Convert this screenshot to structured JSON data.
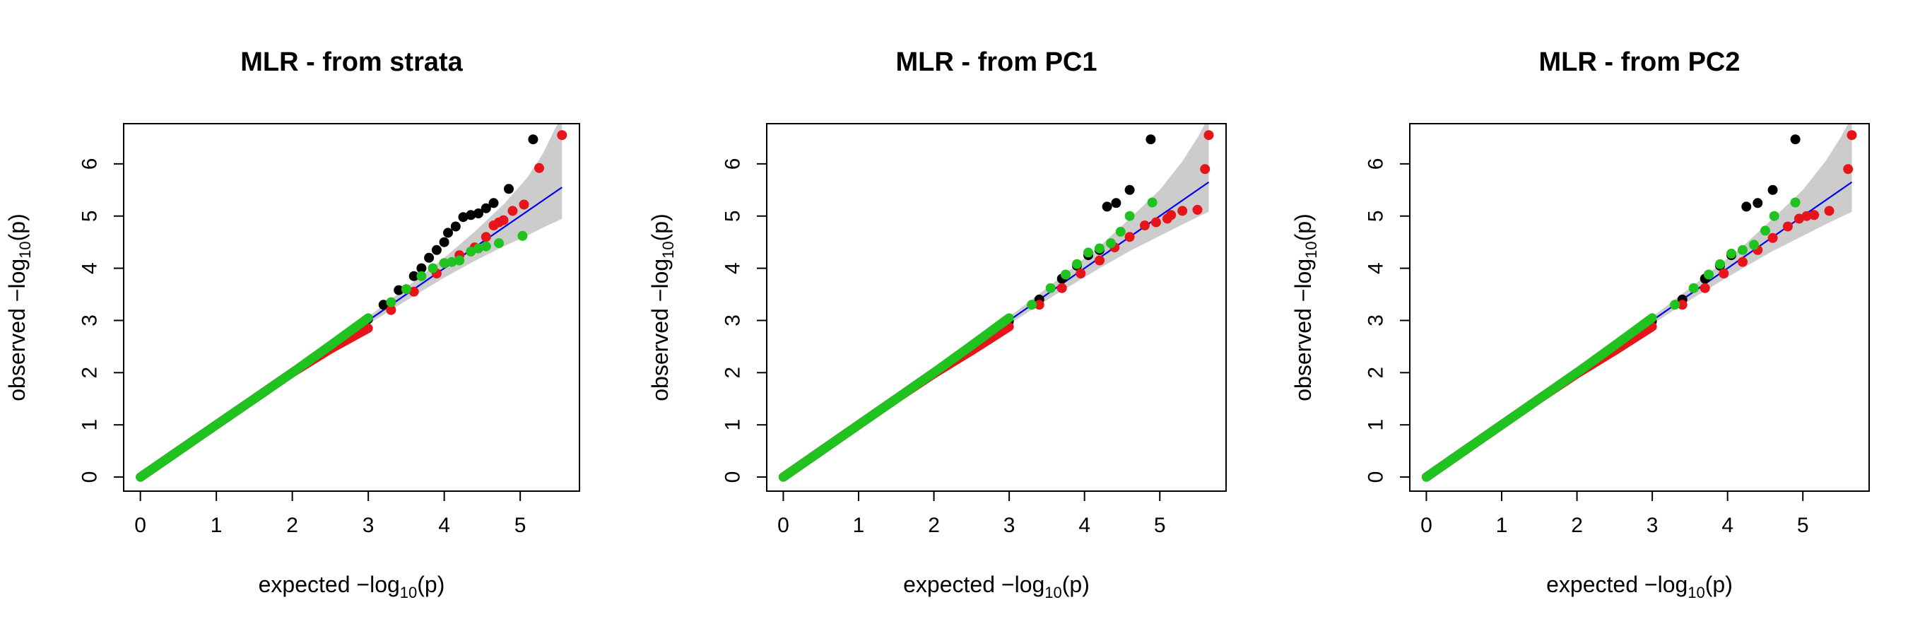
{
  "colors": {
    "series_1": "#000000",
    "series_2": "#e8141b",
    "series_3": "#1fc21f",
    "reference_line": "#0000ee",
    "confidence_band": "#cccccc"
  },
  "chart_data": [
    {
      "type": "scatter",
      "title": "MLR - from strata",
      "xlabel": {
        "prefix": "expected −log",
        "subscript": "10",
        "suffix": "(p)"
      },
      "ylabel": {
        "prefix": "observed −log",
        "subscript": "10",
        "suffix": "(p)"
      },
      "xlim": [
        -0.22,
        5.78
      ],
      "ylim": [
        -0.27,
        6.77
      ],
      "x_ticks": [
        0,
        1,
        2,
        3,
        4,
        5
      ],
      "y_ticks": [
        0,
        1,
        2,
        3,
        4,
        5,
        6
      ],
      "grid": false,
      "legend": "none",
      "reference_line": {
        "x": [
          0,
          5.55
        ],
        "y": [
          0,
          5.55
        ]
      },
      "confidence_band": {
        "x": [
          3.0,
          3.5,
          4.0,
          4.4,
          4.8,
          5.1,
          5.3,
          5.45,
          5.55
        ],
        "lower": [
          2.93,
          3.38,
          3.82,
          4.14,
          4.43,
          4.63,
          4.78,
          4.88,
          4.95
        ],
        "upper": [
          3.07,
          3.63,
          4.2,
          4.7,
          5.25,
          5.75,
          6.2,
          6.65,
          6.9
        ]
      },
      "series": [
        {
          "color_key": "series_1",
          "points": [
            [
              0,
              0
            ],
            [
              0.5,
              0.5
            ],
            [
              1,
              1
            ],
            [
              1.5,
              1.5
            ],
            [
              2,
              2
            ],
            [
              2.5,
              2.5
            ],
            [
              3,
              3.02
            ],
            [
              3.2,
              3.3
            ],
            [
              3.4,
              3.58
            ],
            [
              3.6,
              3.85
            ],
            [
              3.7,
              4.0
            ],
            [
              3.8,
              4.2
            ],
            [
              3.9,
              4.35
            ],
            [
              4.0,
              4.5
            ],
            [
              4.05,
              4.68
            ],
            [
              4.15,
              4.8
            ],
            [
              4.25,
              4.98
            ],
            [
              4.35,
              5.02
            ],
            [
              4.45,
              5.05
            ],
            [
              4.55,
              5.15
            ],
            [
              4.65,
              5.25
            ],
            [
              4.85,
              5.52
            ],
            [
              5.17,
              6.47
            ]
          ]
        },
        {
          "color_key": "series_2",
          "points": [
            [
              0,
              0
            ],
            [
              0.5,
              0.5
            ],
            [
              1,
              1
            ],
            [
              1.5,
              1.5
            ],
            [
              2,
              2
            ],
            [
              2.5,
              2.45
            ],
            [
              3,
              2.85
            ],
            [
              3.3,
              3.2
            ],
            [
              3.6,
              3.55
            ],
            [
              3.9,
              3.9
            ],
            [
              4.2,
              4.25
            ],
            [
              4.4,
              4.4
            ],
            [
              4.55,
              4.6
            ],
            [
              4.65,
              4.82
            ],
            [
              4.72,
              4.88
            ],
            [
              4.78,
              4.92
            ],
            [
              4.9,
              5.1
            ],
            [
              5.05,
              5.22
            ],
            [
              5.25,
              5.92
            ],
            [
              5.55,
              6.55
            ]
          ]
        },
        {
          "color_key": "series_3",
          "points": [
            [
              0,
              0
            ],
            [
              0.5,
              0.5
            ],
            [
              1,
              1
            ],
            [
              1.5,
              1.5
            ],
            [
              2,
              2
            ],
            [
              2.5,
              2.52
            ],
            [
              3,
              3.05
            ],
            [
              3.3,
              3.35
            ],
            [
              3.5,
              3.6
            ],
            [
              3.7,
              3.85
            ],
            [
              3.85,
              4.0
            ],
            [
              4.0,
              4.1
            ],
            [
              4.1,
              4.12
            ],
            [
              4.2,
              4.15
            ],
            [
              4.35,
              4.32
            ],
            [
              4.45,
              4.38
            ],
            [
              4.55,
              4.42
            ],
            [
              4.72,
              4.48
            ],
            [
              5.03,
              4.62
            ]
          ]
        }
      ]
    },
    {
      "type": "scatter",
      "title": "MLR - from PC1",
      "xlabel": {
        "prefix": "expected −log",
        "subscript": "10",
        "suffix": "(p)"
      },
      "ylabel": {
        "prefix": "observed −log",
        "subscript": "10",
        "suffix": "(p)"
      },
      "xlim": [
        -0.22,
        5.88
      ],
      "ylim": [
        -0.27,
        6.77
      ],
      "x_ticks": [
        0,
        1,
        2,
        3,
        4,
        5
      ],
      "y_ticks": [
        0,
        1,
        2,
        3,
        4,
        5,
        6
      ],
      "grid": false,
      "legend": "none",
      "reference_line": {
        "x": [
          0,
          5.65
        ],
        "y": [
          0,
          5.65
        ]
      },
      "confidence_band": {
        "x": [
          3.0,
          3.6,
          4.2,
          4.6,
          5.0,
          5.3,
          5.5,
          5.65
        ],
        "lower": [
          2.93,
          3.48,
          4.0,
          4.33,
          4.62,
          4.84,
          4.98,
          5.08
        ],
        "upper": [
          3.07,
          3.73,
          4.42,
          4.95,
          5.5,
          6.05,
          6.5,
          6.9
        ]
      },
      "series": [
        {
          "color_key": "series_1",
          "points": [
            [
              0,
              0
            ],
            [
              0.5,
              0.5
            ],
            [
              1,
              1
            ],
            [
              1.5,
              1.5
            ],
            [
              2,
              2
            ],
            [
              2.5,
              2.48
            ],
            [
              3,
              2.98
            ],
            [
              3.4,
              3.4
            ],
            [
              3.7,
              3.8
            ],
            [
              3.9,
              4.05
            ],
            [
              4.05,
              4.25
            ],
            [
              4.2,
              4.35
            ],
            [
              4.3,
              5.18
            ],
            [
              4.42,
              5.25
            ],
            [
              4.6,
              5.5
            ],
            [
              4.88,
              6.47
            ]
          ]
        },
        {
          "color_key": "series_2",
          "points": [
            [
              0,
              0
            ],
            [
              0.5,
              0.5
            ],
            [
              1,
              1
            ],
            [
              1.5,
              1.5
            ],
            [
              2,
              1.98
            ],
            [
              2.5,
              2.42
            ],
            [
              3,
              2.88
            ],
            [
              3.4,
              3.3
            ],
            [
              3.7,
              3.62
            ],
            [
              3.95,
              3.9
            ],
            [
              4.2,
              4.15
            ],
            [
              4.4,
              4.4
            ],
            [
              4.6,
              4.6
            ],
            [
              4.8,
              4.82
            ],
            [
              4.95,
              4.88
            ],
            [
              5.1,
              4.95
            ],
            [
              5.15,
              5.02
            ],
            [
              5.3,
              5.1
            ],
            [
              5.5,
              5.12
            ],
            [
              5.6,
              5.9
            ],
            [
              5.65,
              6.55
            ]
          ]
        },
        {
          "color_key": "series_3",
          "points": [
            [
              0,
              0
            ],
            [
              0.5,
              0.5
            ],
            [
              1,
              1
            ],
            [
              1.5,
              1.5
            ],
            [
              2,
              2
            ],
            [
              2.5,
              2.52
            ],
            [
              3,
              3.05
            ],
            [
              3.3,
              3.3
            ],
            [
              3.55,
              3.62
            ],
            [
              3.75,
              3.88
            ],
            [
              3.9,
              4.08
            ],
            [
              4.05,
              4.3
            ],
            [
              4.2,
              4.38
            ],
            [
              4.35,
              4.48
            ],
            [
              4.48,
              4.7
            ],
            [
              4.6,
              5.0
            ],
            [
              4.9,
              5.26
            ]
          ]
        }
      ]
    },
    {
      "type": "scatter",
      "title": "MLR - from PC2",
      "xlabel": {
        "prefix": "expected −log",
        "subscript": "10",
        "suffix": "(p)"
      },
      "ylabel": {
        "prefix": "observed −log",
        "subscript": "10",
        "suffix": "(p)"
      },
      "xlim": [
        -0.22,
        5.88
      ],
      "ylim": [
        -0.27,
        6.77
      ],
      "x_ticks": [
        0,
        1,
        2,
        3,
        4,
        5
      ],
      "y_ticks": [
        0,
        1,
        2,
        3,
        4,
        5,
        6
      ],
      "grid": false,
      "legend": "none",
      "reference_line": {
        "x": [
          0,
          5.65
        ],
        "y": [
          0,
          5.65
        ]
      },
      "confidence_band": {
        "x": [
          3.0,
          3.6,
          4.2,
          4.6,
          5.0,
          5.3,
          5.5,
          5.65
        ],
        "lower": [
          2.93,
          3.48,
          4.0,
          4.33,
          4.62,
          4.84,
          4.98,
          5.08
        ],
        "upper": [
          3.07,
          3.73,
          4.42,
          4.95,
          5.5,
          6.05,
          6.5,
          6.9
        ]
      },
      "series": [
        {
          "color_key": "series_1",
          "points": [
            [
              0,
              0
            ],
            [
              0.5,
              0.5
            ],
            [
              1,
              1
            ],
            [
              1.5,
              1.5
            ],
            [
              2,
              2
            ],
            [
              2.5,
              2.48
            ],
            [
              3,
              2.98
            ],
            [
              3.4,
              3.4
            ],
            [
              3.7,
              3.8
            ],
            [
              3.9,
              4.05
            ],
            [
              4.05,
              4.25
            ],
            [
              4.25,
              5.18
            ],
            [
              4.4,
              5.25
            ],
            [
              4.6,
              5.5
            ],
            [
              4.9,
              6.47
            ]
          ]
        },
        {
          "color_key": "series_2",
          "points": [
            [
              0,
              0
            ],
            [
              0.5,
              0.5
            ],
            [
              1,
              1
            ],
            [
              1.5,
              1.5
            ],
            [
              2,
              1.98
            ],
            [
              2.5,
              2.42
            ],
            [
              3,
              2.88
            ],
            [
              3.4,
              3.3
            ],
            [
              3.7,
              3.62
            ],
            [
              3.95,
              3.9
            ],
            [
              4.2,
              4.12
            ],
            [
              4.4,
              4.35
            ],
            [
              4.6,
              4.58
            ],
            [
              4.8,
              4.8
            ],
            [
              4.95,
              4.95
            ],
            [
              5.05,
              5.0
            ],
            [
              5.15,
              5.02
            ],
            [
              5.35,
              5.1
            ],
            [
              5.6,
              5.9
            ],
            [
              5.65,
              6.55
            ]
          ]
        },
        {
          "color_key": "series_3",
          "points": [
            [
              0,
              0
            ],
            [
              0.5,
              0.5
            ],
            [
              1,
              1
            ],
            [
              1.5,
              1.5
            ],
            [
              2,
              2
            ],
            [
              2.5,
              2.52
            ],
            [
              3,
              3.05
            ],
            [
              3.3,
              3.3
            ],
            [
              3.55,
              3.62
            ],
            [
              3.75,
              3.88
            ],
            [
              3.9,
              4.08
            ],
            [
              4.05,
              4.28
            ],
            [
              4.2,
              4.35
            ],
            [
              4.35,
              4.45
            ],
            [
              4.5,
              4.72
            ],
            [
              4.62,
              5.0
            ],
            [
              4.9,
              5.26
            ]
          ]
        }
      ]
    }
  ]
}
